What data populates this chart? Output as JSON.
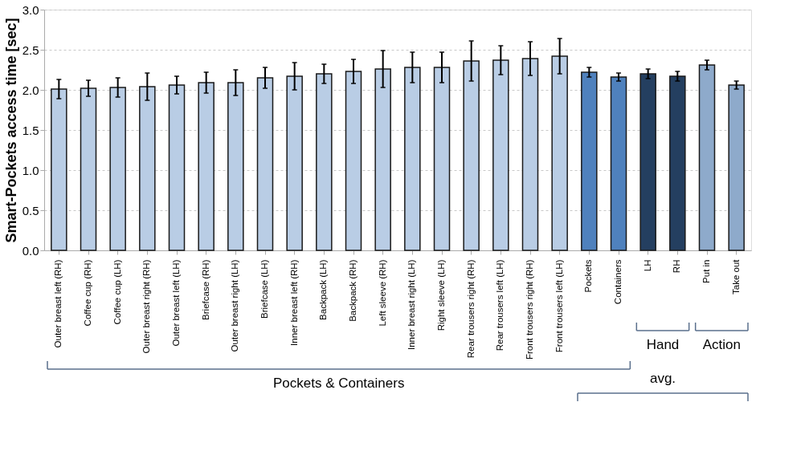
{
  "chart_data": {
    "type": "bar",
    "ylabel": "Smart-Pockets access time [sec]",
    "categories": [
      "Outer breast left (RH)",
      "Coffee cup (RH)",
      "Coffee cup (LH)",
      "Outer breast right (RH)",
      "Outer breast left (LH)",
      "Briefcase (RH)",
      "Outer breast right (LH)",
      "Briefcase (LH)",
      "Inner breast left (RH)",
      "Backpack (LH)",
      "Backpack (RH)",
      "Left sleeve (RH)",
      "Inner breast right (LH)",
      "Right sleeve (LH)",
      "Rear trousers right (RH)",
      "Rear trousers left (LH)",
      "Front trousers right (RH)",
      "Front trousers left (LH)",
      "Pockets",
      "Containers",
      "LH",
      "RH",
      "Put in",
      "Take out"
    ],
    "values": [
      2.01,
      2.02,
      2.03,
      2.04,
      2.06,
      2.09,
      2.09,
      2.15,
      2.17,
      2.2,
      2.23,
      2.26,
      2.28,
      2.28,
      2.36,
      2.37,
      2.39,
      2.42,
      2.22,
      2.16,
      2.2,
      2.17,
      2.31,
      2.06
    ],
    "errors": [
      0.12,
      0.1,
      0.12,
      0.17,
      0.11,
      0.13,
      0.16,
      0.13,
      0.17,
      0.12,
      0.15,
      0.23,
      0.19,
      0.19,
      0.25,
      0.18,
      0.21,
      0.22,
      0.06,
      0.05,
      0.06,
      0.06,
      0.06,
      0.05
    ],
    "colors": [
      "#b9cde5",
      "#b9cde5",
      "#b9cde5",
      "#b9cde5",
      "#b9cde5",
      "#b9cde5",
      "#b9cde5",
      "#b9cde5",
      "#b9cde5",
      "#b9cde5",
      "#b9cde5",
      "#b9cde5",
      "#b9cde5",
      "#b9cde5",
      "#b9cde5",
      "#b9cde5",
      "#b9cde5",
      "#b9cde5",
      "#4f81bd",
      "#4f81bd",
      "#243f60",
      "#243f60",
      "#8eaacb",
      "#8eaacb"
    ],
    "ylim": [
      0,
      3
    ],
    "yticks": [
      {
        "value": 0,
        "label": "0.0"
      },
      {
        "value": 0.5,
        "label": "0.5"
      },
      {
        "value": 1,
        "label": "1.0"
      },
      {
        "value": 1.5,
        "label": "1.5"
      },
      {
        "value": 2,
        "label": "2.0"
      },
      {
        "value": 2.5,
        "label": "2.5"
      },
      {
        "value": 3,
        "label": "3.0"
      }
    ],
    "grid": "y",
    "annotations": [
      "Pockets & Containers",
      "avg.",
      "Hand",
      "Action"
    ]
  }
}
